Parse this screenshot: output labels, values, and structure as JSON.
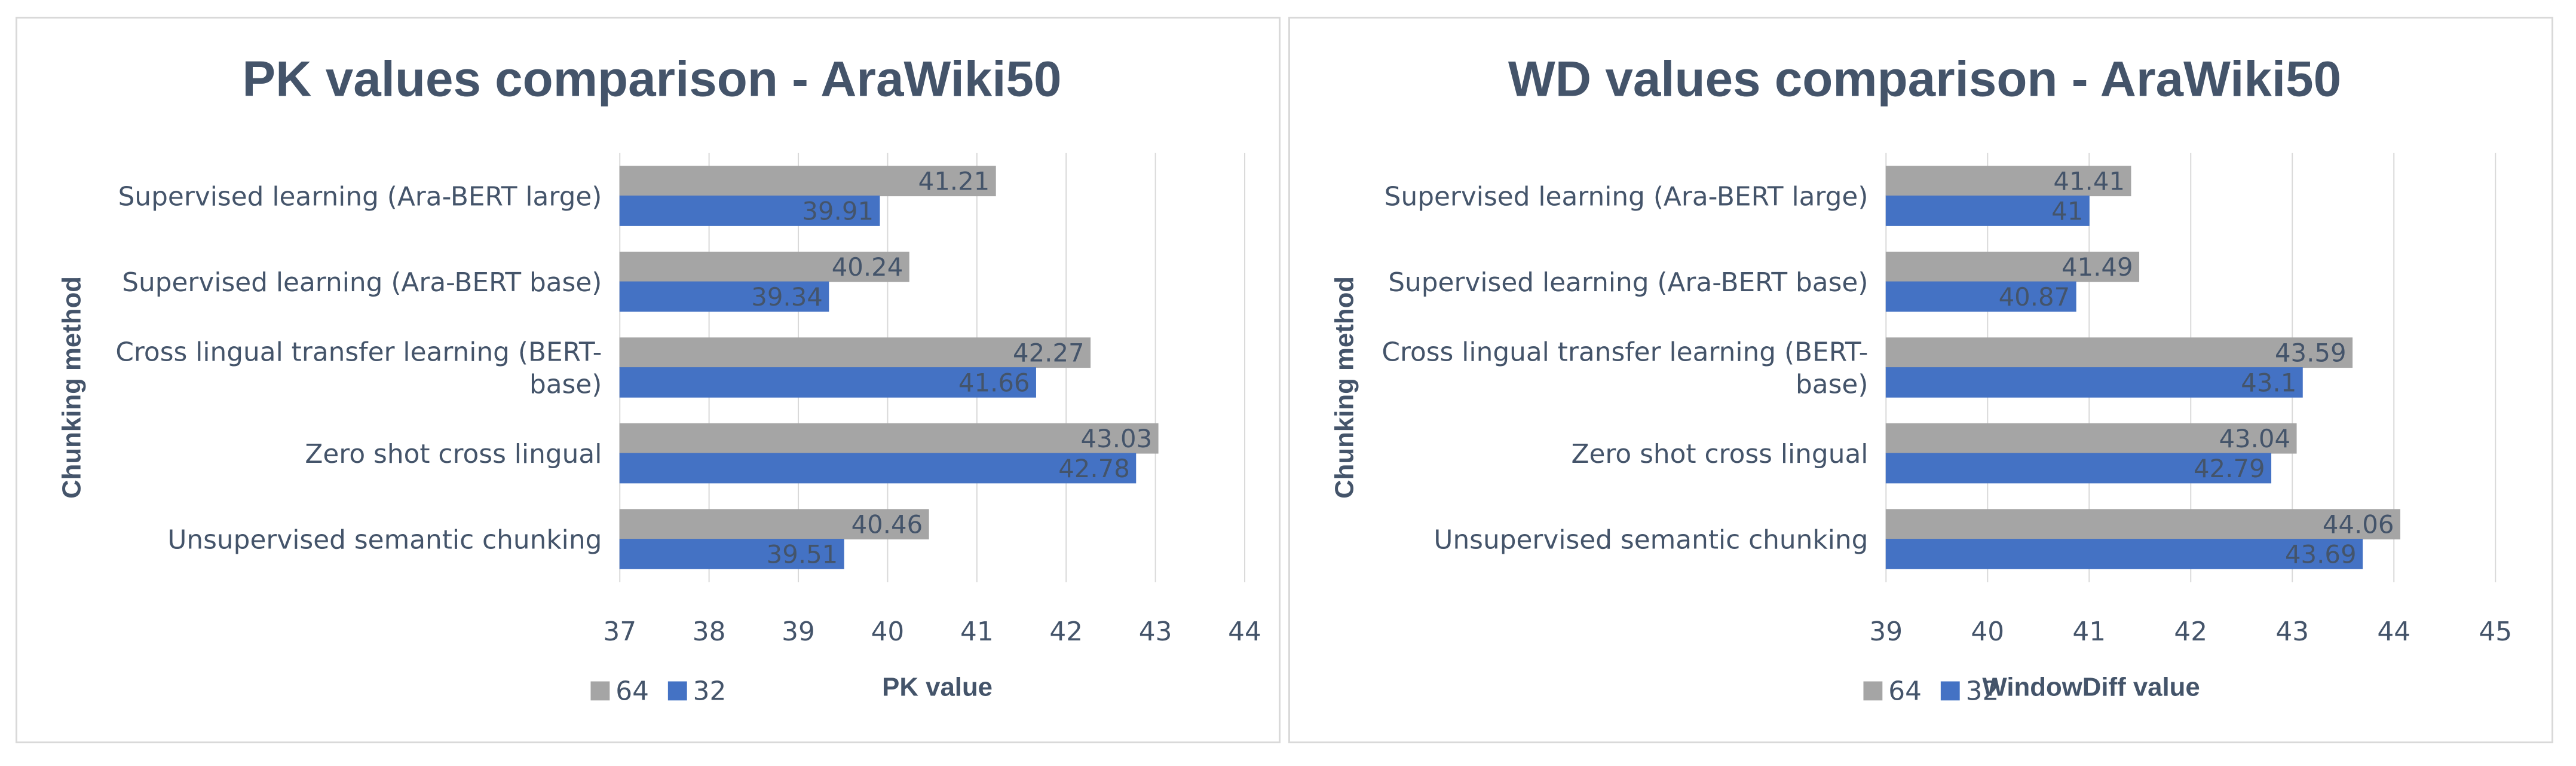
{
  "colors": {
    "series_64": "#a5a5a5",
    "series_32": "#4472c4",
    "text": "#44546a",
    "grid": "#d9d9d9"
  },
  "chart_data": [
    {
      "type": "bar",
      "orientation": "horizontal",
      "title": "PK values comparison - AraWiki50",
      "xlabel": "PK value",
      "ylabel": "Chunking method",
      "categories": [
        [
          "Supervised learning (Ara-BERT large)"
        ],
        [
          "Supervised learning (Ara-BERT base)"
        ],
        [
          "Cross lingual transfer learning (BERT-",
          "base)"
        ],
        [
          "Zero shot cross lingual"
        ],
        [
          "Unsupervised semantic chunking"
        ]
      ],
      "series": [
        {
          "name": "64",
          "color": "#a5a5a5",
          "values": [
            41.21,
            40.24,
            42.27,
            43.03,
            40.46
          ],
          "labels": [
            "41.21",
            "40.24",
            "42.27",
            "43.03",
            "40.46"
          ]
        },
        {
          "name": "32",
          "color": "#4472c4",
          "values": [
            39.91,
            39.34,
            41.66,
            42.78,
            39.51
          ],
          "labels": [
            "39.91",
            "39.34",
            "41.66",
            "42.78",
            "39.51"
          ]
        }
      ],
      "xlim": [
        37,
        44
      ],
      "ticks": [
        "37",
        "38",
        "39",
        "40",
        "41",
        "42",
        "43",
        "44"
      ],
      "grid": true,
      "legend": "bottom-left"
    },
    {
      "type": "bar",
      "orientation": "horizontal",
      "title": "WD values comparison - AraWiki50",
      "xlabel": "WindowDiff value",
      "ylabel": "Chunking method",
      "categories": [
        [
          "Supervised learning (Ara-BERT large)"
        ],
        [
          "Supervised learning (Ara-BERT base)"
        ],
        [
          "Cross lingual transfer learning (BERT-",
          "base)"
        ],
        [
          "Zero shot cross lingual"
        ],
        [
          "Unsupervised semantic chunking"
        ]
      ],
      "series": [
        {
          "name": "64",
          "color": "#a5a5a5",
          "values": [
            41.41,
            41.49,
            43.59,
            43.04,
            44.06
          ],
          "labels": [
            "41.41",
            "41.49",
            "43.59",
            "43.04",
            "44.06"
          ]
        },
        {
          "name": "32",
          "color": "#4472c4",
          "values": [
            41,
            40.87,
            43.1,
            42.79,
            43.69
          ],
          "labels": [
            "41",
            "40.87",
            "43.1",
            "42.79",
            "43.69"
          ]
        }
      ],
      "xlim": [
        39,
        45
      ],
      "ticks": [
        "39",
        "40",
        "41",
        "42",
        "43",
        "44",
        "45"
      ],
      "grid": true,
      "legend": "bottom-left"
    }
  ]
}
